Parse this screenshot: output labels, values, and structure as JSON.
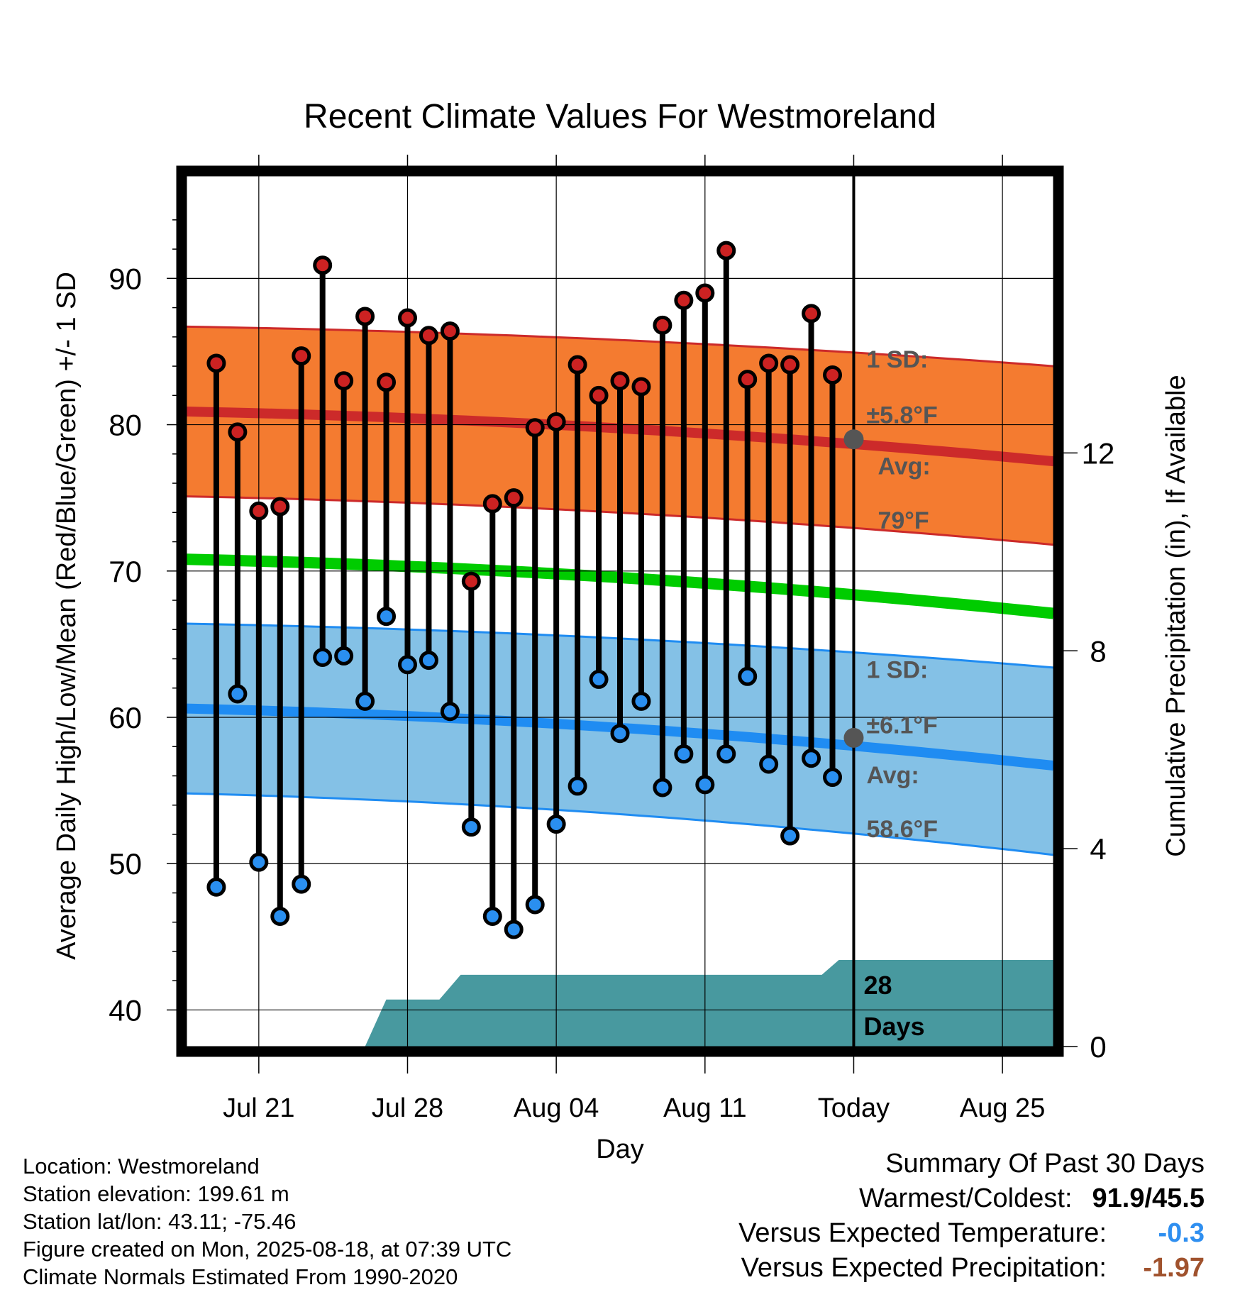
{
  "chart_data": {
    "type": "line",
    "title": "Recent Climate Values For Westmoreland",
    "xlabel": "Day",
    "ylabel": "Average Daily High/Low/Mean (Red/Blue/Green) +/- 1 SD",
    "y2label": "Cumulative Precipitation (in), If Available",
    "ylim": [
      37.5,
      97
    ],
    "y2lim": [
      0,
      17.6
    ],
    "xlim": [
      -0.4,
      40.4
    ],
    "x_tick_labels": [
      {
        "x": 3,
        "label": "Jul 21"
      },
      {
        "x": 10,
        "label": "Jul 28"
      },
      {
        "x": 17,
        "label": "Aug 04"
      },
      {
        "x": 24,
        "label": "Aug 11"
      },
      {
        "x": 31,
        "label": "Today"
      },
      {
        "x": 38,
        "label": "Aug 25"
      }
    ],
    "y_ticks": [
      40,
      50,
      60,
      70,
      80,
      90
    ],
    "y2_ticks": [
      0,
      4,
      8,
      12
    ],
    "grid": true,
    "today_x": 31,
    "daily": {
      "x": [
        1,
        2,
        3,
        4,
        5,
        6,
        7,
        8,
        9,
        10,
        11,
        12,
        13,
        14,
        15,
        16,
        17,
        18,
        19,
        20,
        21,
        22,
        23,
        24,
        25,
        26,
        27,
        28,
        29,
        30
      ],
      "high": [
        84.2,
        79.5,
        74.1,
        74.4,
        84.7,
        90.9,
        83.0,
        87.4,
        82.9,
        87.3,
        86.1,
        86.4,
        69.3,
        74.6,
        75.0,
        79.8,
        80.2,
        84.1,
        82.0,
        83.0,
        82.6,
        86.8,
        88.5,
        89.0,
        91.9,
        83.1,
        84.2,
        84.1,
        87.6,
        83.4
      ],
      "low": [
        48.4,
        61.6,
        50.1,
        46.4,
        48.6,
        64.1,
        64.2,
        61.1,
        66.9,
        63.6,
        63.9,
        60.4,
        52.5,
        46.4,
        45.5,
        47.2,
        52.7,
        55.3,
        62.6,
        58.9,
        61.1,
        55.2,
        57.5,
        55.4,
        57.5,
        62.8,
        56.8,
        51.9,
        57.2,
        55.9
      ]
    },
    "normals": {
      "x": [
        -0.4,
        40.4
      ],
      "high_start": 80.9,
      "high_end": 77.5,
      "high_sd_top_start": 86.7,
      "high_sd_top_end": 84.0,
      "high_sd_bottom_start": 75.1,
      "high_sd_bottom_end": 71.8,
      "low_start": 60.6,
      "low_end": 56.7,
      "low_sd_top_start": 66.4,
      "low_sd_top_end": 63.4,
      "low_sd_bottom_start": 54.8,
      "low_sd_bottom_end": 50.6,
      "mean_start": 70.8,
      "mean_end": 67.1
    },
    "precip": {
      "x": [
        -0.4,
        8.0,
        9.0,
        11.5,
        12.5,
        29.5,
        30.3,
        40.4
      ],
      "y": [
        0.0,
        0.0,
        0.95,
        0.95,
        1.45,
        1.45,
        1.75,
        1.75
      ]
    },
    "annotations": {
      "high_sd_line1": "1 SD:",
      "high_sd_line2": "±5.8°F",
      "high_avg_line1": "Avg:",
      "high_avg_line2": "79°F",
      "low_sd_line1": "1 SD:",
      "low_sd_line2": "±6.1°F",
      "low_avg_line1": "Avg:",
      "low_avg_line2": "58.6°F",
      "days_line1": "28",
      "days_line2": "Days"
    },
    "today_markers": {
      "high": 79.0,
      "low": 58.6
    },
    "colors": {
      "high_band": "#f47b30",
      "high_line": "#cc2a2a",
      "low_band": "#84c1e6",
      "low_line": "#1f8cf2",
      "mean_line": "#00cc00",
      "precip": "#48999f",
      "high_dot": "#cc2222",
      "low_dot": "#2a8ff0",
      "annotation": "#555555"
    }
  },
  "info": {
    "location": "Location: Westmoreland",
    "elevation": "Station elevation: 199.61 m",
    "latlon": "Station lat/lon: 43.11; -75.46",
    "created": "Figure created on Mon, 2025-08-18, at 07:39 UTC",
    "normals": "Climate Normals Estimated From 1990-2020"
  },
  "summary": {
    "title": "Summary Of Past 30 Days",
    "warm_label": "Warmest/Coldest:",
    "warm_value": "91.9/45.5",
    "temp_label": "Versus Expected Temperature:",
    "temp_value": "-0.3",
    "precip_label": "Versus Expected Precipitation:",
    "precip_value": "-1.97"
  }
}
